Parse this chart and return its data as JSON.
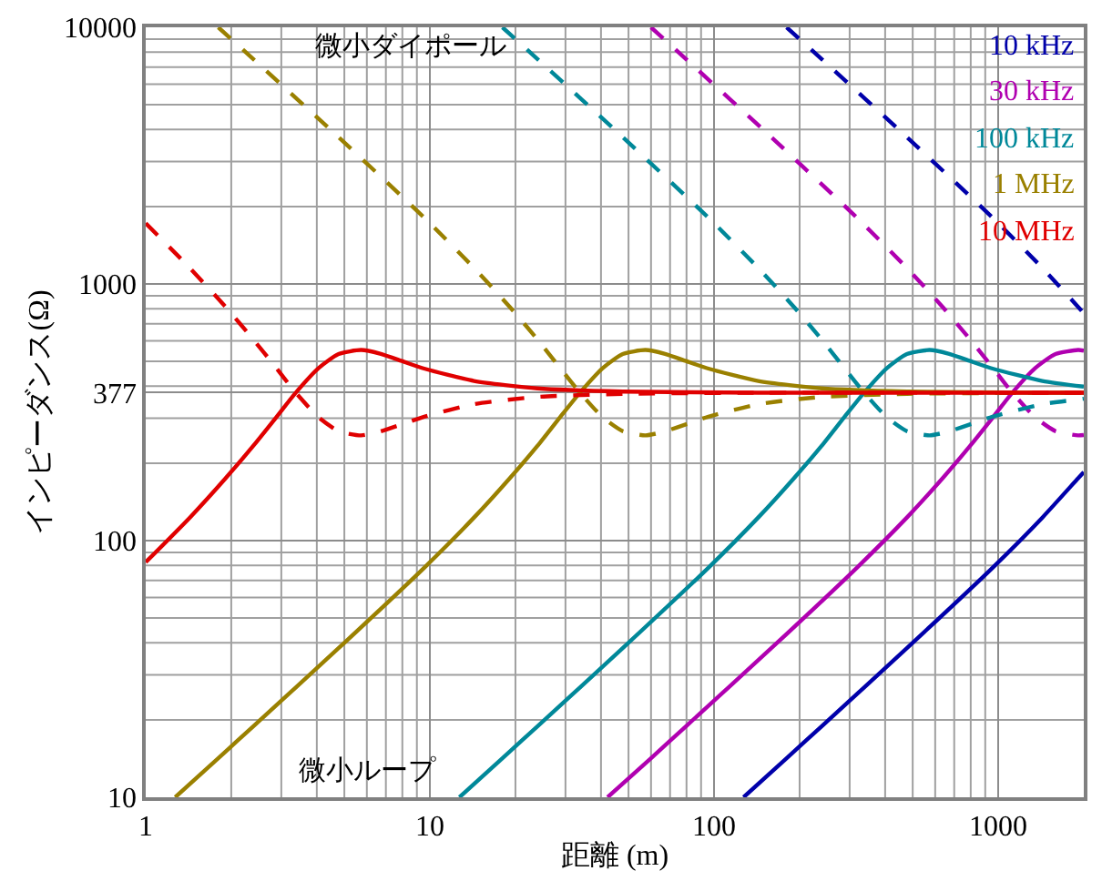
{
  "chart_data": {
    "type": "line",
    "xlabel": "距離 (m)",
    "ylabel": "インピーダンス(Ω)",
    "log": "xy",
    "grid": true,
    "legend": "top right",
    "xlim": [
      1,
      2000
    ],
    "ylim": [
      10,
      10000
    ],
    "xticks": [
      1,
      10,
      100,
      1000
    ],
    "yticks": [
      10,
      100,
      {
        "value": 377,
        "label": "377"
      },
      1000,
      10000
    ],
    "annotations": [
      "微小ダイポール",
      "微小ループ"
    ],
    "series": [
      {
        "color": "#0000aa",
        "line_style": "dashed",
        "x": [
          180,
          239,
          477,
          955,
          1430,
          1910,
          2000
        ],
        "values": [
          10000,
          7521,
          3732,
          1813,
          1154,
          814,
          768
        ]
      },
      {
        "name": "10 kHz",
        "color": "#0000aa",
        "line_style": "solid",
        "x": [
          127,
          180,
          239,
          477,
          955,
          1430,
          1910,
          2000
        ],
        "values": [
          10.0,
          14.2,
          18.9,
          38.1,
          78.4,
          123,
          175,
          185
        ]
      },
      {
        "color": "#b000b0",
        "line_style": "dashed",
        "x": [
          60.0,
          79.6,
          159,
          318,
          477,
          637,
          796,
          955,
          1110,
          1350,
          1590,
          1910,
          2000
        ],
        "values": [
          10000,
          7521,
          3732,
          1813,
          1154,
          814,
          608,
          473,
          382,
          302,
          267,
          257,
          258
        ]
      },
      {
        "name": "30 kHz",
        "color": "#b000b0",
        "line_style": "solid",
        "x": [
          42.2,
          60.0,
          79.6,
          159,
          318,
          477,
          637,
          796,
          955,
          1110,
          1350,
          1590,
          1910,
          2000
        ],
        "values": [
          10.0,
          14.2,
          18.9,
          38.1,
          78.4,
          123,
          175,
          234,
          301,
          372,
          470,
          533,
          553,
          550
        ]
      },
      {
        "color": "#008899",
        "line_style": "dashed",
        "x": [
          18.0,
          23.9,
          47.7,
          95.5,
          143,
          191,
          239,
          286,
          334,
          406,
          477,
          573,
          668,
          812,
          955,
          1430,
          2000
        ],
        "values": [
          10000,
          7521,
          3732,
          1813,
          1154,
          814,
          608,
          473,
          382,
          302,
          267,
          257,
          266,
          286,
          304,
          340,
          357
        ]
      },
      {
        "name": "100 kHz",
        "color": "#008899",
        "line_style": "solid",
        "x": [
          12.7,
          18.0,
          23.9,
          47.7,
          95.5,
          143,
          191,
          239,
          286,
          334,
          406,
          477,
          573,
          668,
          812,
          955,
          1430,
          2000
        ],
        "values": [
          10.0,
          14.2,
          18.9,
          38.1,
          78.4,
          123,
          175,
          234,
          301,
          372,
          470,
          533,
          553,
          535,
          497,
          468,
          419,
          398
        ]
      },
      {
        "color": "#9a8000",
        "line_style": "dashed",
        "x": [
          1.8,
          2.39,
          4.77,
          9.55,
          14.3,
          19.1,
          23.9,
          28.6,
          33.4,
          40.6,
          47.7,
          57.3,
          66.8,
          81.2,
          95.5,
          143,
          239,
          477,
          1430,
          2000
        ],
        "values": [
          10000,
          7521,
          3732,
          1813,
          1154,
          814,
          608,
          473,
          382,
          302,
          267,
          257,
          266,
          286,
          304,
          340,
          363,
          373,
          377,
          377
        ]
      },
      {
        "name": "1 MHz",
        "color": "#9a8000",
        "line_style": "solid",
        "x": [
          1.27,
          1.8,
          2.39,
          4.77,
          9.55,
          14.3,
          19.1,
          23.9,
          28.6,
          33.4,
          40.6,
          47.7,
          57.3,
          66.8,
          81.2,
          95.5,
          143,
          239,
          477,
          1430,
          2000
        ],
        "values": [
          10.0,
          14.2,
          18.9,
          38.1,
          78.4,
          123,
          175,
          234,
          301,
          372,
          470,
          533,
          553,
          535,
          497,
          468,
          419,
          392,
          381,
          377,
          377
        ]
      },
      {
        "color": "#e00000",
        "line_style": "dashed",
        "x": [
          1,
          1.43,
          1.91,
          2.39,
          2.87,
          3.34,
          4.06,
          4.77,
          5.73,
          6.68,
          8.12,
          9.55,
          14.3,
          23.9,
          47.7,
          143,
          2000
        ],
        "values": [
          1724,
          1154,
          814,
          608,
          473,
          382,
          302,
          267,
          257,
          266,
          286,
          304,
          340,
          363,
          373,
          377,
          377
        ]
      },
      {
        "name": "10 MHz",
        "color": "#e00000",
        "line_style": "solid",
        "x": [
          1,
          1.43,
          1.91,
          2.39,
          2.87,
          3.34,
          4.06,
          4.77,
          5.73,
          6.68,
          8.12,
          9.55,
          14.3,
          23.9,
          47.7,
          143,
          2000
        ],
        "values": [
          82.4,
          123,
          175,
          234,
          301,
          372,
          470,
          533,
          553,
          535,
          497,
          468,
          419,
          392,
          381,
          377,
          377
        ]
      }
    ]
  }
}
